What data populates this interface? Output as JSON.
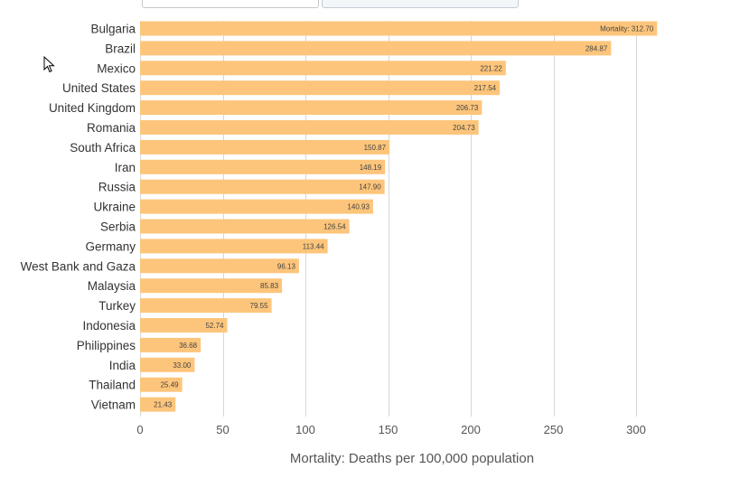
{
  "chart_data": {
    "type": "bar",
    "orientation": "horizontal",
    "categories": [
      "Bulgaria",
      "Brazil",
      "Mexico",
      "United States",
      "United Kingdom",
      "Romania",
      "South Africa",
      "Iran",
      "Russia",
      "Ukraine",
      "Serbia",
      "Germany",
      "West Bank and Gaza",
      "Malaysia",
      "Turkey",
      "Indonesia",
      "Philippines",
      "India",
      "Thailand",
      "Vietnam"
    ],
    "values": [
      312.7,
      284.87,
      221.22,
      217.54,
      206.73,
      204.73,
      150.87,
      148.19,
      147.9,
      140.93,
      126.54,
      113.44,
      96.13,
      85.83,
      79.55,
      52.74,
      36.68,
      33.0,
      25.49,
      21.43
    ],
    "value_labels": [
      "Mortality: 312.70",
      "284.87",
      "221.22",
      "217.54",
      "206.73",
      "204.73",
      "150.87",
      "148.19",
      "147.90",
      "140.93",
      "126.54",
      "113.44",
      "96.13",
      "85.83",
      "79.55",
      "52.74",
      "36.68",
      "33.00",
      "25.49",
      "21.43"
    ],
    "xlabel": "Mortality: Deaths per 100,000 population",
    "ylabel": "",
    "title": "",
    "xlim": [
      0,
      320
    ],
    "xticks": [
      0,
      50,
      100,
      150,
      200,
      250,
      300
    ],
    "xtick_labels": [
      "0",
      "50",
      "100",
      "150",
      "200",
      "250",
      "300"
    ],
    "grid": true,
    "bar_color": "#fdc57b",
    "grid_color": "#d6d6d6"
  },
  "ui": {
    "cursor_icon": "arrow-pointer-icon"
  }
}
